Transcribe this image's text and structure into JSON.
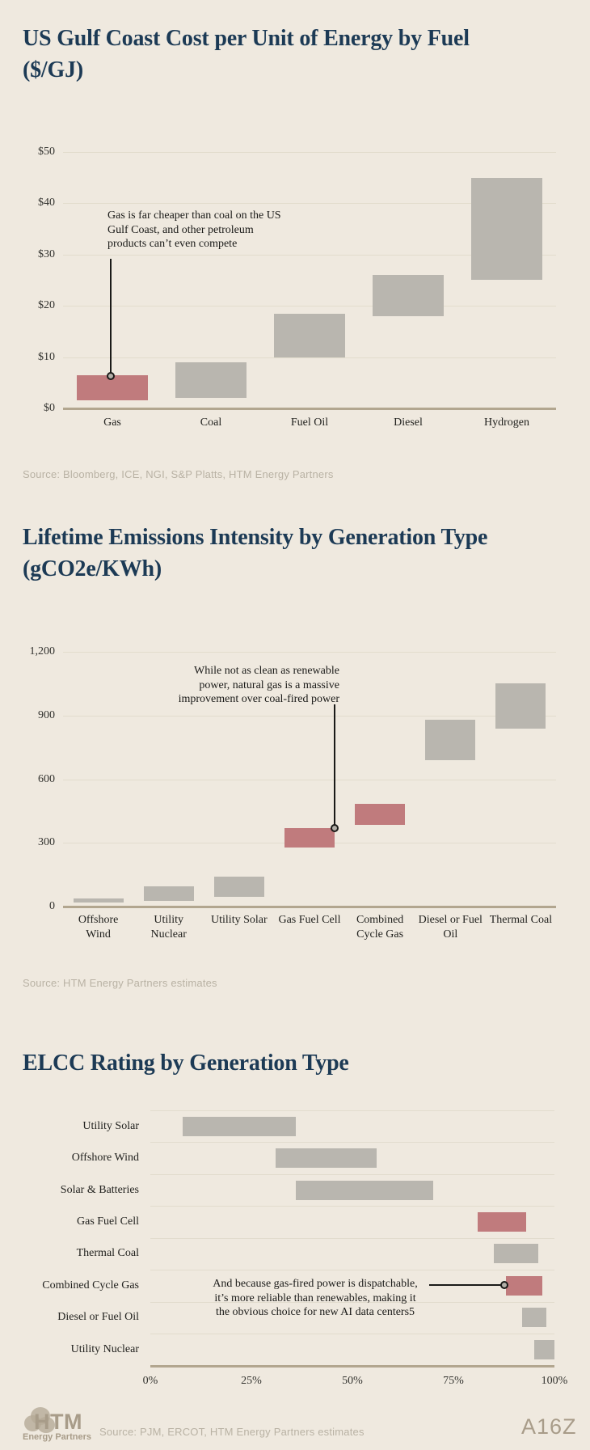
{
  "colors": {
    "background": "#EFE9DF",
    "title": "#1C3A55",
    "bar_gray": "#B9B6AF",
    "bar_red": "#C07B7D",
    "axis": "#B2A68F",
    "gridline": "#E2DCCD",
    "text": "#22221F",
    "source_text": "#B9B2A4",
    "annotation": "#1A1A18",
    "logo": "#A89C89"
  },
  "charts": [
    {
      "title_lines": [
        "US Gulf Coast Cost per Unit of Energy by Fuel",
        "($/GJ)"
      ],
      "source": "Source: Bloomberg, ICE, NGI, S&P Platts, HTM Energy Partners"
    },
    {
      "title_lines": [
        "Lifetime Emissions Intensity by Generation Type",
        "(gCO2e/KWh)"
      ],
      "source": "Source: HTM Energy Partners estimates"
    },
    {
      "title_lines": [
        "ELCC Rating by Generation Type"
      ]
    }
  ],
  "annotations": {
    "chart1": {
      "lines": [
        "Gas is far cheaper than coal on the US",
        "Gulf Coast, and other petroleum",
        "products can’t even compete"
      ]
    },
    "chart2": {
      "lines": [
        "While not as clean as renewable",
        "power, natural gas is a massive",
        "improvement over coal-fired power"
      ]
    },
    "chart3": {
      "lines": [
        "And because gas-fired power is dispatchable,",
        "it’s more reliable than renewables, making it",
        "the obvious choice for new AI data centers5"
      ]
    }
  },
  "footer": {
    "logo_htm": "HTM",
    "logo_htm_sub": "Energy Partners",
    "source": "Source: PJM, ERCOT, HTM Energy Partners estimates",
    "logo_a16z": "A16Z"
  },
  "chart_data": [
    {
      "type": "bar",
      "style": "floating-range",
      "orientation": "vertical",
      "title": "US Gulf Coast Cost per Unit of Energy by Fuel ($/GJ)",
      "unit": "$/GJ",
      "xlabel": "",
      "ylabel": "",
      "ylim": [
        0,
        50
      ],
      "grid": "horizontal",
      "legend": "none",
      "yticks": [
        {
          "value": 0,
          "label": "$0"
        },
        {
          "value": 10,
          "label": "$10"
        },
        {
          "value": 20,
          "label": "$20"
        },
        {
          "value": 30,
          "label": "$30"
        },
        {
          "value": 40,
          "label": "$40"
        },
        {
          "value": 50,
          "label": "$50"
        }
      ],
      "bars": [
        {
          "category": "Gas",
          "display": "Gas",
          "low": 1.5,
          "high": 6.5,
          "color": "red"
        },
        {
          "category": "Coal",
          "display": "Coal",
          "low": 2,
          "high": 9,
          "color": "gray"
        },
        {
          "category": "Fuel Oil",
          "display": "Fuel Oil",
          "low": 10,
          "high": 18.5,
          "color": "gray"
        },
        {
          "category": "Diesel",
          "display": "Diesel",
          "low": 18,
          "high": 26,
          "color": "gray"
        },
        {
          "category": "Hydrogen",
          "display": "Hydrogen",
          "low": 25,
          "high": 45,
          "color": "gray"
        }
      ],
      "annotation": "Gas is far cheaper than coal on the US Gulf Coast, and other petroleum products can’t even compete",
      "source": "Source: Bloomberg, ICE, NGI, S&P Platts, HTM Energy Partners"
    },
    {
      "type": "bar",
      "style": "floating-range",
      "orientation": "vertical",
      "title": "Lifetime Emissions Intensity by Generation Type (gCO2e/KWh)",
      "unit": "gCO2e/KWh",
      "xlabel": "",
      "ylabel": "",
      "ylim": [
        0,
        1200
      ],
      "grid": "horizontal",
      "legend": "none",
      "yticks": [
        {
          "value": 0,
          "label": "0"
        },
        {
          "value": 300,
          "label": "300"
        },
        {
          "value": 600,
          "label": "600"
        },
        {
          "value": 900,
          "label": "900"
        },
        {
          "value": 1200,
          "label": "1,200"
        }
      ],
      "bars": [
        {
          "category": "Offshore Wind",
          "display": "Offshore\nWind",
          "low": 20,
          "high": 40,
          "color": "gray"
        },
        {
          "category": "Utility Nuclear",
          "display": "Utility\nNuclear",
          "low": 25,
          "high": 95,
          "color": "gray"
        },
        {
          "category": "Utility Solar",
          "display": "Utility Solar",
          "low": 45,
          "high": 140,
          "color": "gray"
        },
        {
          "category": "Gas Fuel Cell",
          "display": "Gas Fuel Cell",
          "low": 280,
          "high": 370,
          "color": "red"
        },
        {
          "category": "Combined Cycle Gas",
          "display": "Combined\nCycle Gas",
          "low": 385,
          "high": 485,
          "color": "red"
        },
        {
          "category": "Diesel or Fuel Oil",
          "display": "Diesel or Fuel\nOil",
          "low": 690,
          "high": 880,
          "color": "gray"
        },
        {
          "category": "Thermal Coal",
          "display": "Thermal Coal",
          "low": 840,
          "high": 1050,
          "color": "gray"
        }
      ],
      "annotation": "While not as clean as renewable power, natural gas is a massive improvement over coal-fired power",
      "source": "Source: HTM Energy Partners estimates"
    },
    {
      "type": "bar",
      "style": "floating-range",
      "orientation": "horizontal",
      "title": "ELCC Rating by Generation Type",
      "unit": "%",
      "xlabel": "",
      "ylabel": "",
      "xlim": [
        0,
        100
      ],
      "grid": "row-separators",
      "legend": "none",
      "xticks": [
        {
          "value": 0,
          "label": "0%"
        },
        {
          "value": 25,
          "label": "25%"
        },
        {
          "value": 50,
          "label": "50%"
        },
        {
          "value": 75,
          "label": "75%"
        },
        {
          "value": 100,
          "label": "100%"
        }
      ],
      "bars": [
        {
          "category": "Utility Solar",
          "low": 8,
          "high": 36,
          "color": "gray"
        },
        {
          "category": "Offshore Wind",
          "low": 31,
          "high": 56,
          "color": "gray"
        },
        {
          "category": "Solar & Batteries",
          "low": 36,
          "high": 70,
          "color": "gray"
        },
        {
          "category": "Gas Fuel Cell",
          "low": 81,
          "high": 93,
          "color": "red"
        },
        {
          "category": "Thermal Coal",
          "low": 85,
          "high": 96,
          "color": "gray"
        },
        {
          "category": "Combined Cycle Gas",
          "low": 88,
          "high": 97,
          "color": "red"
        },
        {
          "category": "Diesel or Fuel Oil",
          "low": 92,
          "high": 98,
          "color": "gray"
        },
        {
          "category": "Utility Nuclear",
          "low": 95,
          "high": 100,
          "color": "gray"
        }
      ],
      "annotation": "And because gas-fired power is dispatchable, it’s more reliable than renewables, making it the obvious choice for new AI data centers5",
      "source": "Source: PJM, ERCOT, HTM Energy Partners estimates"
    }
  ]
}
